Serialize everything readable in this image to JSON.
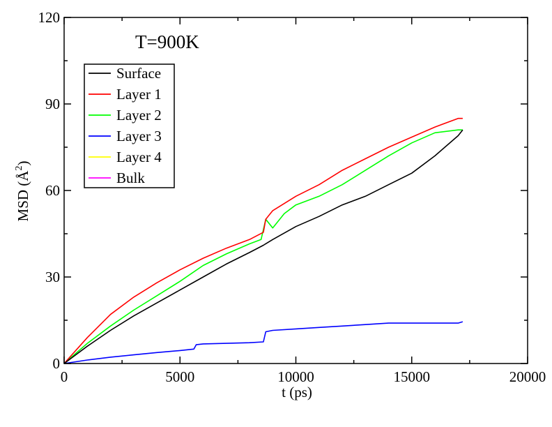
{
  "chart_data": {
    "type": "line",
    "title": "",
    "annotation": "T=900K",
    "xlabel": "t (ps)",
    "ylabel_main": "MSD (",
    "ylabel_unit": "Å",
    "ylabel_power": "2",
    "ylabel_close": ")",
    "xlim": [
      0,
      20000
    ],
    "ylim": [
      0,
      120
    ],
    "xticks": [
      0,
      5000,
      10000,
      15000,
      20000
    ],
    "yticks": [
      0,
      30,
      60,
      90,
      120
    ],
    "xtick_labels": [
      "0",
      "5000",
      "10000",
      "15000",
      "20000"
    ],
    "ytick_labels": [
      "0",
      "30",
      "60",
      "90",
      "120"
    ],
    "grid": false,
    "legend_position": "top-left",
    "series": [
      {
        "name": "Surface",
        "color": "#000000",
        "x": [
          0,
          1000,
          2000,
          3000,
          4000,
          5000,
          6000,
          7000,
          8000,
          8600,
          9000,
          10000,
          11000,
          12000,
          13000,
          14000,
          15000,
          16000,
          17000,
          17200
        ],
        "y": [
          0,
          6,
          11.5,
          16.5,
          21,
          25.5,
          30,
          34.5,
          38.5,
          41,
          43,
          47.5,
          51,
          55,
          58,
          62,
          66,
          72,
          79,
          81
        ]
      },
      {
        "name": "Layer 1",
        "color": "#ff0000",
        "x": [
          0,
          1000,
          2000,
          3000,
          4000,
          5000,
          6000,
          7000,
          8000,
          8600,
          8700,
          9000,
          10000,
          11000,
          12000,
          13000,
          14000,
          15000,
          16000,
          17000,
          17200
        ],
        "y": [
          0,
          9,
          17,
          23,
          28,
          32.5,
          36.5,
          40,
          43,
          45.5,
          50,
          53,
          58,
          62,
          67,
          71,
          75,
          78.5,
          82,
          85,
          85
        ]
      },
      {
        "name": "Layer 2",
        "color": "#00ff00",
        "x": [
          0,
          1000,
          2000,
          3000,
          4000,
          5000,
          6000,
          7000,
          8000,
          8500,
          8700,
          9000,
          9500,
          10000,
          11000,
          12000,
          13000,
          14000,
          15000,
          16000,
          17000,
          17200
        ],
        "y": [
          0,
          7,
          13,
          18.5,
          23.5,
          28.5,
          34,
          38,
          41.5,
          43,
          50,
          47,
          52,
          55,
          58,
          62,
          67,
          72,
          76.5,
          80,
          81,
          81
        ]
      },
      {
        "name": "Layer 3",
        "color": "#0000ff",
        "x": [
          0,
          1000,
          2000,
          3000,
          4000,
          5000,
          5600,
          5700,
          6000,
          7000,
          8000,
          8600,
          8700,
          9000,
          10000,
          11000,
          12000,
          13000,
          14000,
          15000,
          16000,
          17000,
          17200
        ],
        "y": [
          0,
          1.2,
          2.2,
          3,
          3.8,
          4.5,
          5,
          6.5,
          6.8,
          7,
          7.2,
          7.5,
          11,
          11.5,
          12,
          12.5,
          13,
          13.5,
          14,
          14,
          14,
          14,
          14.5
        ]
      },
      {
        "name": "Layer 4",
        "color": "#ffff00",
        "x": [],
        "y": []
      },
      {
        "name": "Bulk",
        "color": "#ff00ff",
        "x": [],
        "y": []
      }
    ]
  }
}
